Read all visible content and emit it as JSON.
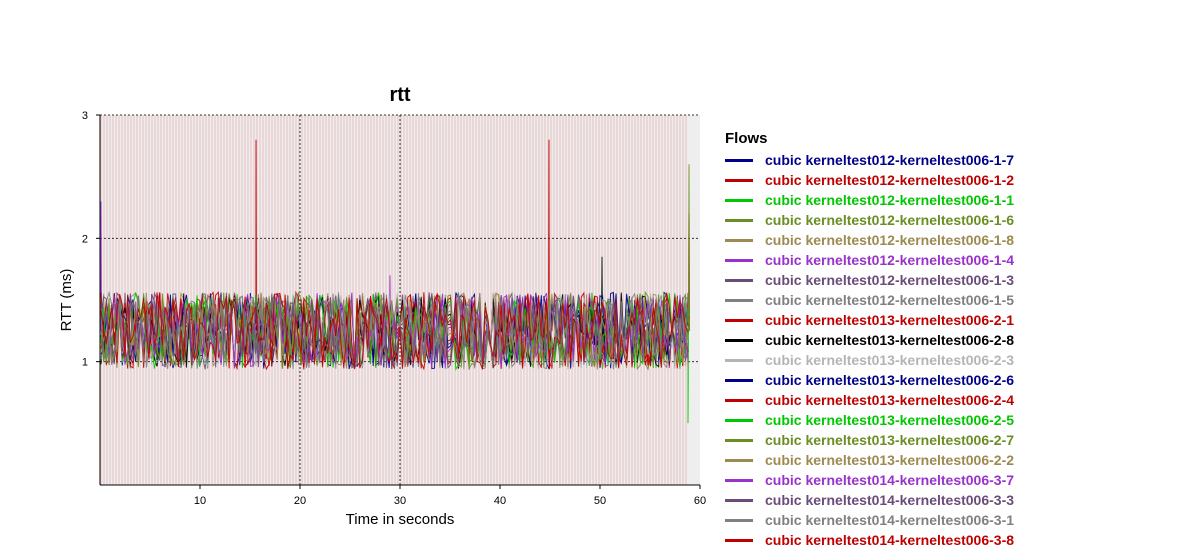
{
  "chart_data": {
    "type": "line",
    "title": "rtt",
    "xlabel": "Time in seconds",
    "ylabel": "RTT (ms)",
    "xlim": [
      0,
      60
    ],
    "ylim": [
      0,
      3
    ],
    "x_ticks": [
      10,
      20,
      30,
      40,
      50,
      60
    ],
    "y_ticks": [
      1,
      2,
      3
    ],
    "grid": true,
    "legend_title": "Flows",
    "legend_position": "right",
    "typical_range_ms": [
      1.0,
      1.5
    ],
    "series": [
      {
        "name": "cubic kerneltest012-kerneltest006-1-7",
        "color": "#00008b",
        "spikes": []
      },
      {
        "name": "cubic kerneltest012-kerneltest006-1-2",
        "color": "#c00000",
        "spikes": [
          {
            "x": 15.6,
            "y": 2.8
          },
          {
            "x": 44.9,
            "y": 2.8
          },
          {
            "x": 58.9,
            "y": 2.2
          }
        ]
      },
      {
        "name": "cubic kerneltest012-kerneltest006-1-1",
        "color": "#00c800",
        "spikes": [
          {
            "x": 58.8,
            "y": 0.5
          }
        ]
      },
      {
        "name": "cubic kerneltest012-kerneltest006-1-6",
        "color": "#6b8e23",
        "spikes": [
          {
            "x": 58.9,
            "y": 2.6
          }
        ]
      },
      {
        "name": "cubic kerneltest012-kerneltest006-1-8",
        "color": "#9c8a50",
        "spikes": []
      },
      {
        "name": "cubic kerneltest012-kerneltest006-1-4",
        "color": "#9932cc",
        "spikes": [
          {
            "x": 0.1,
            "y": 2.3
          },
          {
            "x": 29.0,
            "y": 1.7
          }
        ]
      },
      {
        "name": "cubic kerneltest012-kerneltest006-1-3",
        "color": "#6a4c7a",
        "spikes": []
      },
      {
        "name": "cubic kerneltest012-kerneltest006-1-5",
        "color": "#808080",
        "spikes": []
      },
      {
        "name": "cubic kerneltest013-kerneltest006-2-1",
        "color": "#c00000",
        "spikes": []
      },
      {
        "name": "cubic kerneltest013-kerneltest006-2-8",
        "color": "#000000",
        "spikes": [
          {
            "x": 50.2,
            "y": 1.85
          }
        ]
      },
      {
        "name": "cubic kerneltest013-kerneltest006-2-3",
        "color": "#b4b4b4",
        "spikes": []
      },
      {
        "name": "cubic kerneltest013-kerneltest006-2-6",
        "color": "#00008b",
        "spikes": []
      },
      {
        "name": "cubic kerneltest013-kerneltest006-2-4",
        "color": "#c00000",
        "spikes": []
      },
      {
        "name": "cubic kerneltest013-kerneltest006-2-5",
        "color": "#00c800",
        "spikes": []
      },
      {
        "name": "cubic kerneltest013-kerneltest006-2-7",
        "color": "#6b8e23",
        "spikes": []
      },
      {
        "name": "cubic kerneltest013-kerneltest006-2-2",
        "color": "#9c8a50",
        "spikes": []
      },
      {
        "name": "cubic kerneltest014-kerneltest006-3-7",
        "color": "#9932cc",
        "spikes": []
      },
      {
        "name": "cubic kerneltest014-kerneltest006-3-3",
        "color": "#6a4c7a",
        "spikes": []
      },
      {
        "name": "cubic kerneltest014-kerneltest006-3-1",
        "color": "#808080",
        "spikes": []
      },
      {
        "name": "cubic kerneltest014-kerneltest006-3-8",
        "color": "#c00000",
        "spikes": []
      }
    ]
  }
}
